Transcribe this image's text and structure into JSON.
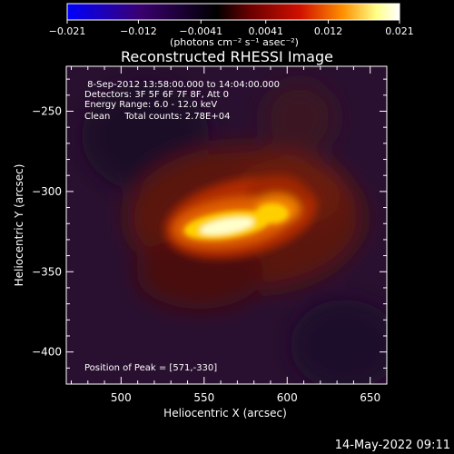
{
  "chart_data": {
    "type": "heatmap",
    "title": "Reconstructed RHESSI Image",
    "xlabel": "Heliocentric X (arcsec)",
    "ylabel": "Heliocentric Y (arcsec)",
    "xlim": [
      467,
      660
    ],
    "ylim": [
      -420,
      -222
    ],
    "xticks": [
      500,
      550,
      600,
      650
    ],
    "yticks": [
      -250,
      -300,
      -350,
      -400
    ],
    "colorbar": {
      "label": "(photons cm⁻² s⁻¹ asec⁻²)",
      "min": -0.021,
      "max": 0.021,
      "ticks": [
        "−0.021",
        "−0.012",
        "−0.0041",
        "0.0041",
        "0.012",
        "0.021"
      ],
      "tick_values": [
        -0.021,
        -0.012,
        -0.0041,
        0.0041,
        0.012,
        0.021
      ],
      "colormap": [
        "#0000ff",
        "#3a0070",
        "#000000",
        "#6a0000",
        "#d01000",
        "#ff9000",
        "#ffff88",
        "#ffffff"
      ]
    },
    "annotations": [
      " 8-Sep-2012 13:58:00.000 to 14:04:00.000",
      "Detectors: 3F 5F 6F 7F 8F, Att 0",
      "Energy Range: 6.0 - 12.0 keV",
      "Clean     Total counts: 2.78E+04",
      "Position of Peak = [571,-330]"
    ],
    "peak": [
      571,
      -330
    ],
    "timestamp": "14-May-2022 09:11"
  }
}
